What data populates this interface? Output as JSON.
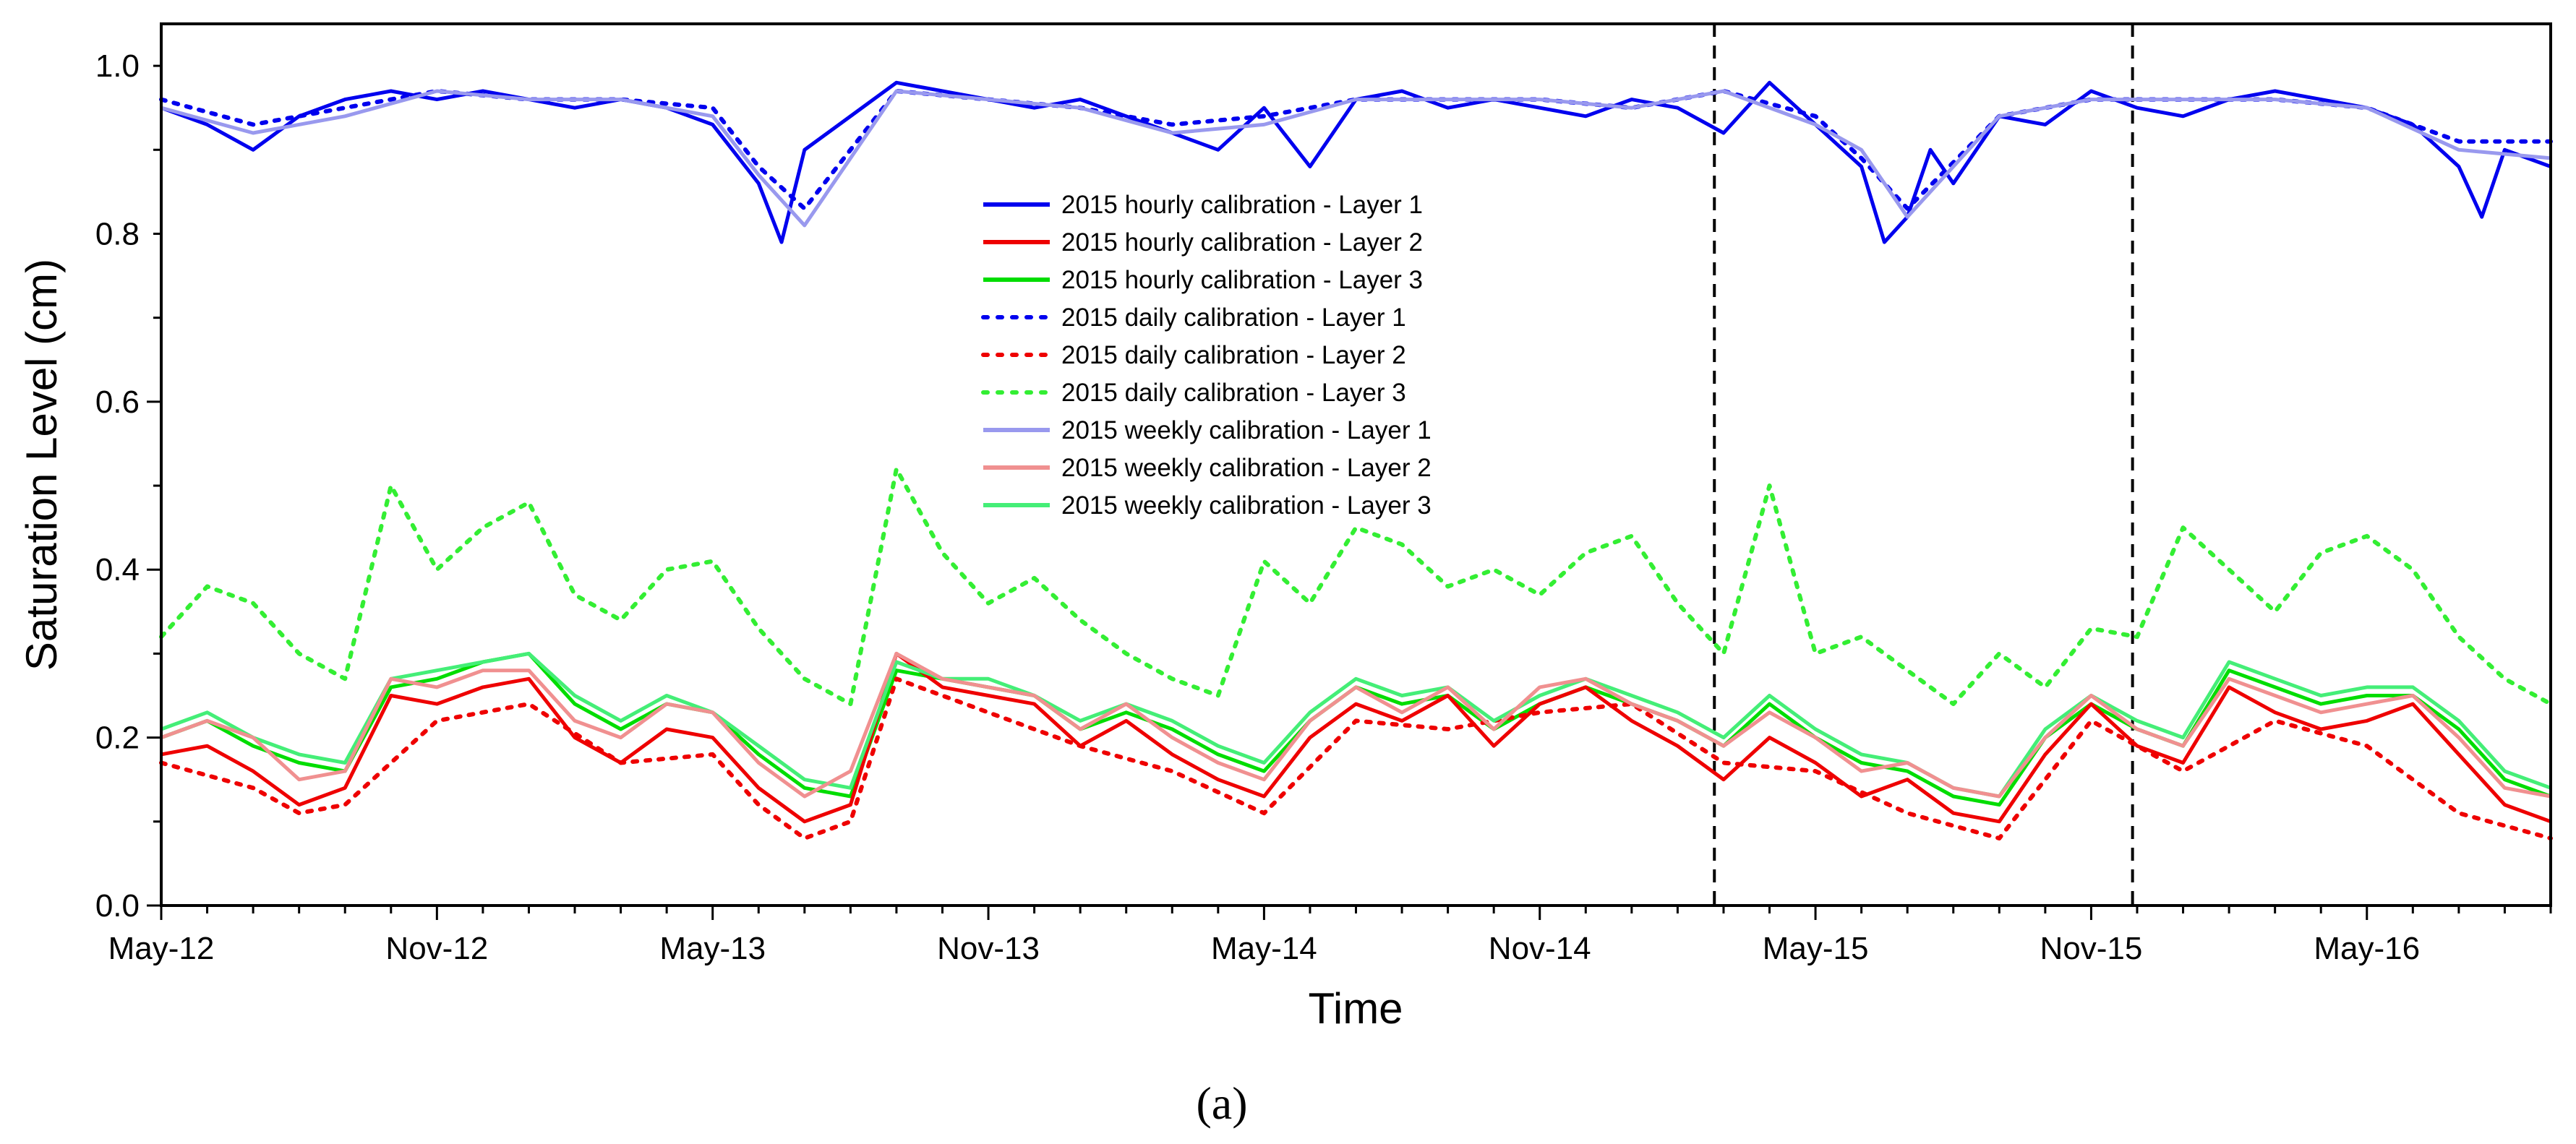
{
  "chart_data": {
    "type": "line",
    "title": "",
    "xlabel": "Time",
    "ylabel": "Saturation Level (cm)",
    "caption": "(a)",
    "ylim": [
      0.0,
      1.05
    ],
    "xlim_months": [
      0,
      52
    ],
    "x_unit": "months since May-12",
    "x_ticks": [
      {
        "month": 0,
        "label": "May-12"
      },
      {
        "month": 6,
        "label": "Nov-12"
      },
      {
        "month": 12,
        "label": "May-13"
      },
      {
        "month": 18,
        "label": "Nov-13"
      },
      {
        "month": 24,
        "label": "May-14"
      },
      {
        "month": 30,
        "label": "Nov-14"
      },
      {
        "month": 36,
        "label": "May-15"
      },
      {
        "month": 42,
        "label": "Nov-15"
      },
      {
        "month": 48,
        "label": "May-16"
      }
    ],
    "y_ticks": [
      {
        "value": 0.0,
        "label": "0.0"
      },
      {
        "value": 0.2,
        "label": "0.2"
      },
      {
        "value": 0.4,
        "label": "0.4"
      },
      {
        "value": 0.6,
        "label": "0.6"
      },
      {
        "value": 0.8,
        "label": "0.8"
      },
      {
        "value": 1.0,
        "label": "1.0"
      }
    ],
    "vlines_months": [
      33.8,
      42.9
    ],
    "legend_position": "center",
    "series": [
      {
        "name": "2015 hourly calibration - Layer 1",
        "color": "#0000ee",
        "style": "solid",
        "x": [
          0,
          1,
          2,
          3,
          4,
          5,
          6,
          7,
          8,
          9,
          10,
          11,
          12,
          13,
          13.5,
          14,
          15,
          16,
          17,
          18,
          19,
          20,
          21,
          22,
          23,
          24,
          25,
          26,
          27,
          28,
          29,
          30,
          31,
          32,
          33,
          34,
          35,
          36,
          37,
          37.5,
          38,
          38.5,
          39,
          40,
          41,
          42,
          43,
          44,
          45,
          46,
          47,
          48,
          49,
          50,
          50.5,
          51,
          52
        ],
        "y": [
          0.95,
          0.93,
          0.9,
          0.94,
          0.96,
          0.97,
          0.96,
          0.97,
          0.96,
          0.95,
          0.96,
          0.95,
          0.93,
          0.86,
          0.79,
          0.9,
          0.94,
          0.98,
          0.97,
          0.96,
          0.95,
          0.96,
          0.94,
          0.92,
          0.9,
          0.95,
          0.88,
          0.96,
          0.97,
          0.95,
          0.96,
          0.95,
          0.94,
          0.96,
          0.95,
          0.92,
          0.98,
          0.93,
          0.88,
          0.79,
          0.82,
          0.9,
          0.86,
          0.94,
          0.93,
          0.97,
          0.95,
          0.94,
          0.96,
          0.97,
          0.96,
          0.95,
          0.93,
          0.88,
          0.82,
          0.9,
          0.88
        ]
      },
      {
        "name": "2015 hourly calibration - Layer 2",
        "color": "#ee0000",
        "style": "solid",
        "x": [
          0,
          1,
          2,
          3,
          4,
          5,
          6,
          7,
          8,
          9,
          10,
          11,
          12,
          13,
          14,
          15,
          16,
          17,
          18,
          19,
          20,
          21,
          22,
          23,
          24,
          25,
          26,
          27,
          28,
          29,
          30,
          31,
          32,
          33,
          34,
          35,
          36,
          37,
          38,
          39,
          40,
          41,
          42,
          43,
          44,
          45,
          46,
          47,
          48,
          49,
          50,
          51,
          52
        ],
        "y": [
          0.18,
          0.19,
          0.16,
          0.12,
          0.14,
          0.25,
          0.24,
          0.26,
          0.27,
          0.2,
          0.17,
          0.21,
          0.2,
          0.14,
          0.1,
          0.12,
          0.3,
          0.26,
          0.25,
          0.24,
          0.19,
          0.22,
          0.18,
          0.15,
          0.13,
          0.2,
          0.24,
          0.22,
          0.25,
          0.19,
          0.24,
          0.26,
          0.22,
          0.19,
          0.15,
          0.2,
          0.17,
          0.13,
          0.15,
          0.11,
          0.1,
          0.18,
          0.24,
          0.19,
          0.17,
          0.26,
          0.23,
          0.21,
          0.22,
          0.24,
          0.18,
          0.12,
          0.1
        ]
      },
      {
        "name": "2015 hourly calibration - Layer 3",
        "color": "#00dd00",
        "style": "solid",
        "x": [
          0,
          1,
          2,
          3,
          4,
          5,
          6,
          7,
          8,
          9,
          10,
          11,
          12,
          13,
          14,
          15,
          16,
          17,
          18,
          19,
          20,
          21,
          22,
          23,
          24,
          25,
          26,
          27,
          28,
          29,
          30,
          31,
          32,
          33,
          34,
          35,
          36,
          37,
          38,
          39,
          40,
          41,
          42,
          43,
          44,
          45,
          46,
          47,
          48,
          49,
          50,
          51,
          52
        ],
        "y": [
          0.2,
          0.22,
          0.19,
          0.17,
          0.16,
          0.26,
          0.27,
          0.29,
          0.3,
          0.24,
          0.21,
          0.24,
          0.23,
          0.18,
          0.14,
          0.13,
          0.28,
          0.27,
          0.26,
          0.25,
          0.21,
          0.23,
          0.21,
          0.18,
          0.16,
          0.22,
          0.26,
          0.24,
          0.25,
          0.21,
          0.24,
          0.26,
          0.24,
          0.22,
          0.19,
          0.24,
          0.2,
          0.17,
          0.16,
          0.13,
          0.12,
          0.2,
          0.24,
          0.21,
          0.19,
          0.28,
          0.26,
          0.24,
          0.25,
          0.25,
          0.21,
          0.15,
          0.13
        ]
      },
      {
        "name": "2015 daily calibration - Layer 1",
        "color": "#0000ee",
        "style": "dotted",
        "x": [
          0,
          2,
          4,
          6,
          8,
          10,
          12,
          13,
          14,
          16,
          18,
          20,
          22,
          24,
          26,
          28,
          30,
          32,
          34,
          36,
          37,
          38,
          40,
          42,
          44,
          46,
          48,
          50,
          52
        ],
        "y": [
          0.96,
          0.93,
          0.95,
          0.97,
          0.96,
          0.96,
          0.95,
          0.88,
          0.83,
          0.97,
          0.96,
          0.95,
          0.93,
          0.94,
          0.96,
          0.96,
          0.96,
          0.95,
          0.97,
          0.94,
          0.89,
          0.83,
          0.94,
          0.96,
          0.96,
          0.96,
          0.95,
          0.91,
          0.91
        ]
      },
      {
        "name": "2015 daily calibration - Layer 2",
        "color": "#ee0000",
        "style": "dotted",
        "x": [
          0,
          2,
          3,
          4,
          6,
          8,
          10,
          12,
          13,
          14,
          15,
          16,
          18,
          20,
          22,
          24,
          26,
          28,
          30,
          32,
          34,
          36,
          38,
          40,
          42,
          44,
          46,
          48,
          50,
          52
        ],
        "y": [
          0.17,
          0.14,
          0.11,
          0.12,
          0.22,
          0.24,
          0.17,
          0.18,
          0.12,
          0.08,
          0.1,
          0.27,
          0.23,
          0.19,
          0.16,
          0.11,
          0.22,
          0.21,
          0.23,
          0.24,
          0.17,
          0.16,
          0.11,
          0.08,
          0.22,
          0.16,
          0.22,
          0.19,
          0.11,
          0.08
        ]
      },
      {
        "name": "2015 daily calibration - Layer 3",
        "color": "#33ee33",
        "style": "dotted",
        "x": [
          0,
          1,
          2,
          3,
          4,
          5,
          6,
          7,
          8,
          9,
          10,
          11,
          12,
          13,
          14,
          15,
          16,
          17,
          18,
          19,
          20,
          21,
          22,
          23,
          24,
          25,
          26,
          27,
          28,
          29,
          30,
          31,
          32,
          33,
          34,
          35,
          36,
          37,
          38,
          39,
          40,
          41,
          42,
          43,
          44,
          45,
          46,
          47,
          48,
          49,
          50,
          51,
          52
        ],
        "y": [
          0.32,
          0.38,
          0.36,
          0.3,
          0.27,
          0.5,
          0.4,
          0.45,
          0.48,
          0.37,
          0.34,
          0.4,
          0.41,
          0.33,
          0.27,
          0.24,
          0.52,
          0.42,
          0.36,
          0.39,
          0.34,
          0.3,
          0.27,
          0.25,
          0.41,
          0.36,
          0.45,
          0.43,
          0.38,
          0.4,
          0.37,
          0.42,
          0.44,
          0.36,
          0.3,
          0.5,
          0.3,
          0.32,
          0.28,
          0.24,
          0.3,
          0.26,
          0.33,
          0.32,
          0.45,
          0.4,
          0.35,
          0.42,
          0.44,
          0.4,
          0.32,
          0.27,
          0.24
        ]
      },
      {
        "name": "2015 weekly calibration - Layer 1",
        "color": "#9999ee",
        "style": "solid",
        "x": [
          0,
          2,
          4,
          6,
          8,
          10,
          12,
          13,
          14,
          16,
          18,
          20,
          22,
          24,
          26,
          28,
          30,
          32,
          34,
          36,
          37,
          38,
          40,
          42,
          44,
          46,
          48,
          50,
          52
        ],
        "y": [
          0.95,
          0.92,
          0.94,
          0.97,
          0.96,
          0.96,
          0.94,
          0.87,
          0.81,
          0.97,
          0.96,
          0.95,
          0.92,
          0.93,
          0.96,
          0.96,
          0.96,
          0.95,
          0.97,
          0.93,
          0.9,
          0.82,
          0.94,
          0.96,
          0.96,
          0.96,
          0.95,
          0.9,
          0.89
        ]
      },
      {
        "name": "2015 weekly calibration -  Layer 2",
        "color": "#f09090",
        "style": "solid",
        "x": [
          0,
          1,
          2,
          3,
          4,
          5,
          6,
          7,
          8,
          9,
          10,
          11,
          12,
          13,
          14,
          15,
          16,
          17,
          18,
          19,
          20,
          21,
          22,
          23,
          24,
          25,
          26,
          27,
          28,
          29,
          30,
          31,
          32,
          33,
          34,
          35,
          36,
          37,
          38,
          39,
          40,
          41,
          42,
          43,
          44,
          45,
          46,
          47,
          48,
          49,
          50,
          51,
          52
        ],
        "y": [
          0.2,
          0.22,
          0.2,
          0.15,
          0.16,
          0.27,
          0.26,
          0.28,
          0.28,
          0.22,
          0.2,
          0.24,
          0.23,
          0.17,
          0.13,
          0.16,
          0.3,
          0.27,
          0.26,
          0.25,
          0.21,
          0.24,
          0.2,
          0.17,
          0.15,
          0.22,
          0.26,
          0.23,
          0.26,
          0.21,
          0.26,
          0.27,
          0.24,
          0.22,
          0.19,
          0.23,
          0.2,
          0.16,
          0.17,
          0.14,
          0.13,
          0.2,
          0.25,
          0.21,
          0.19,
          0.27,
          0.25,
          0.23,
          0.24,
          0.25,
          0.2,
          0.14,
          0.13
        ]
      },
      {
        "name": "2015 weekly calibration - Layer 3",
        "color": "#44ee77",
        "style": "solid",
        "x": [
          0,
          1,
          2,
          3,
          4,
          5,
          6,
          7,
          8,
          9,
          10,
          11,
          12,
          13,
          14,
          15,
          16,
          17,
          18,
          19,
          20,
          21,
          22,
          23,
          24,
          25,
          26,
          27,
          28,
          29,
          30,
          31,
          32,
          33,
          34,
          35,
          36,
          37,
          38,
          39,
          40,
          41,
          42,
          43,
          44,
          45,
          46,
          47,
          48,
          49,
          50,
          51,
          52
        ],
        "y": [
          0.21,
          0.23,
          0.2,
          0.18,
          0.17,
          0.27,
          0.28,
          0.29,
          0.3,
          0.25,
          0.22,
          0.25,
          0.23,
          0.19,
          0.15,
          0.14,
          0.29,
          0.27,
          0.27,
          0.25,
          0.22,
          0.24,
          0.22,
          0.19,
          0.17,
          0.23,
          0.27,
          0.25,
          0.26,
          0.22,
          0.25,
          0.27,
          0.25,
          0.23,
          0.2,
          0.25,
          0.21,
          0.18,
          0.17,
          0.14,
          0.13,
          0.21,
          0.25,
          0.22,
          0.2,
          0.29,
          0.27,
          0.25,
          0.26,
          0.26,
          0.22,
          0.16,
          0.14
        ]
      }
    ]
  }
}
